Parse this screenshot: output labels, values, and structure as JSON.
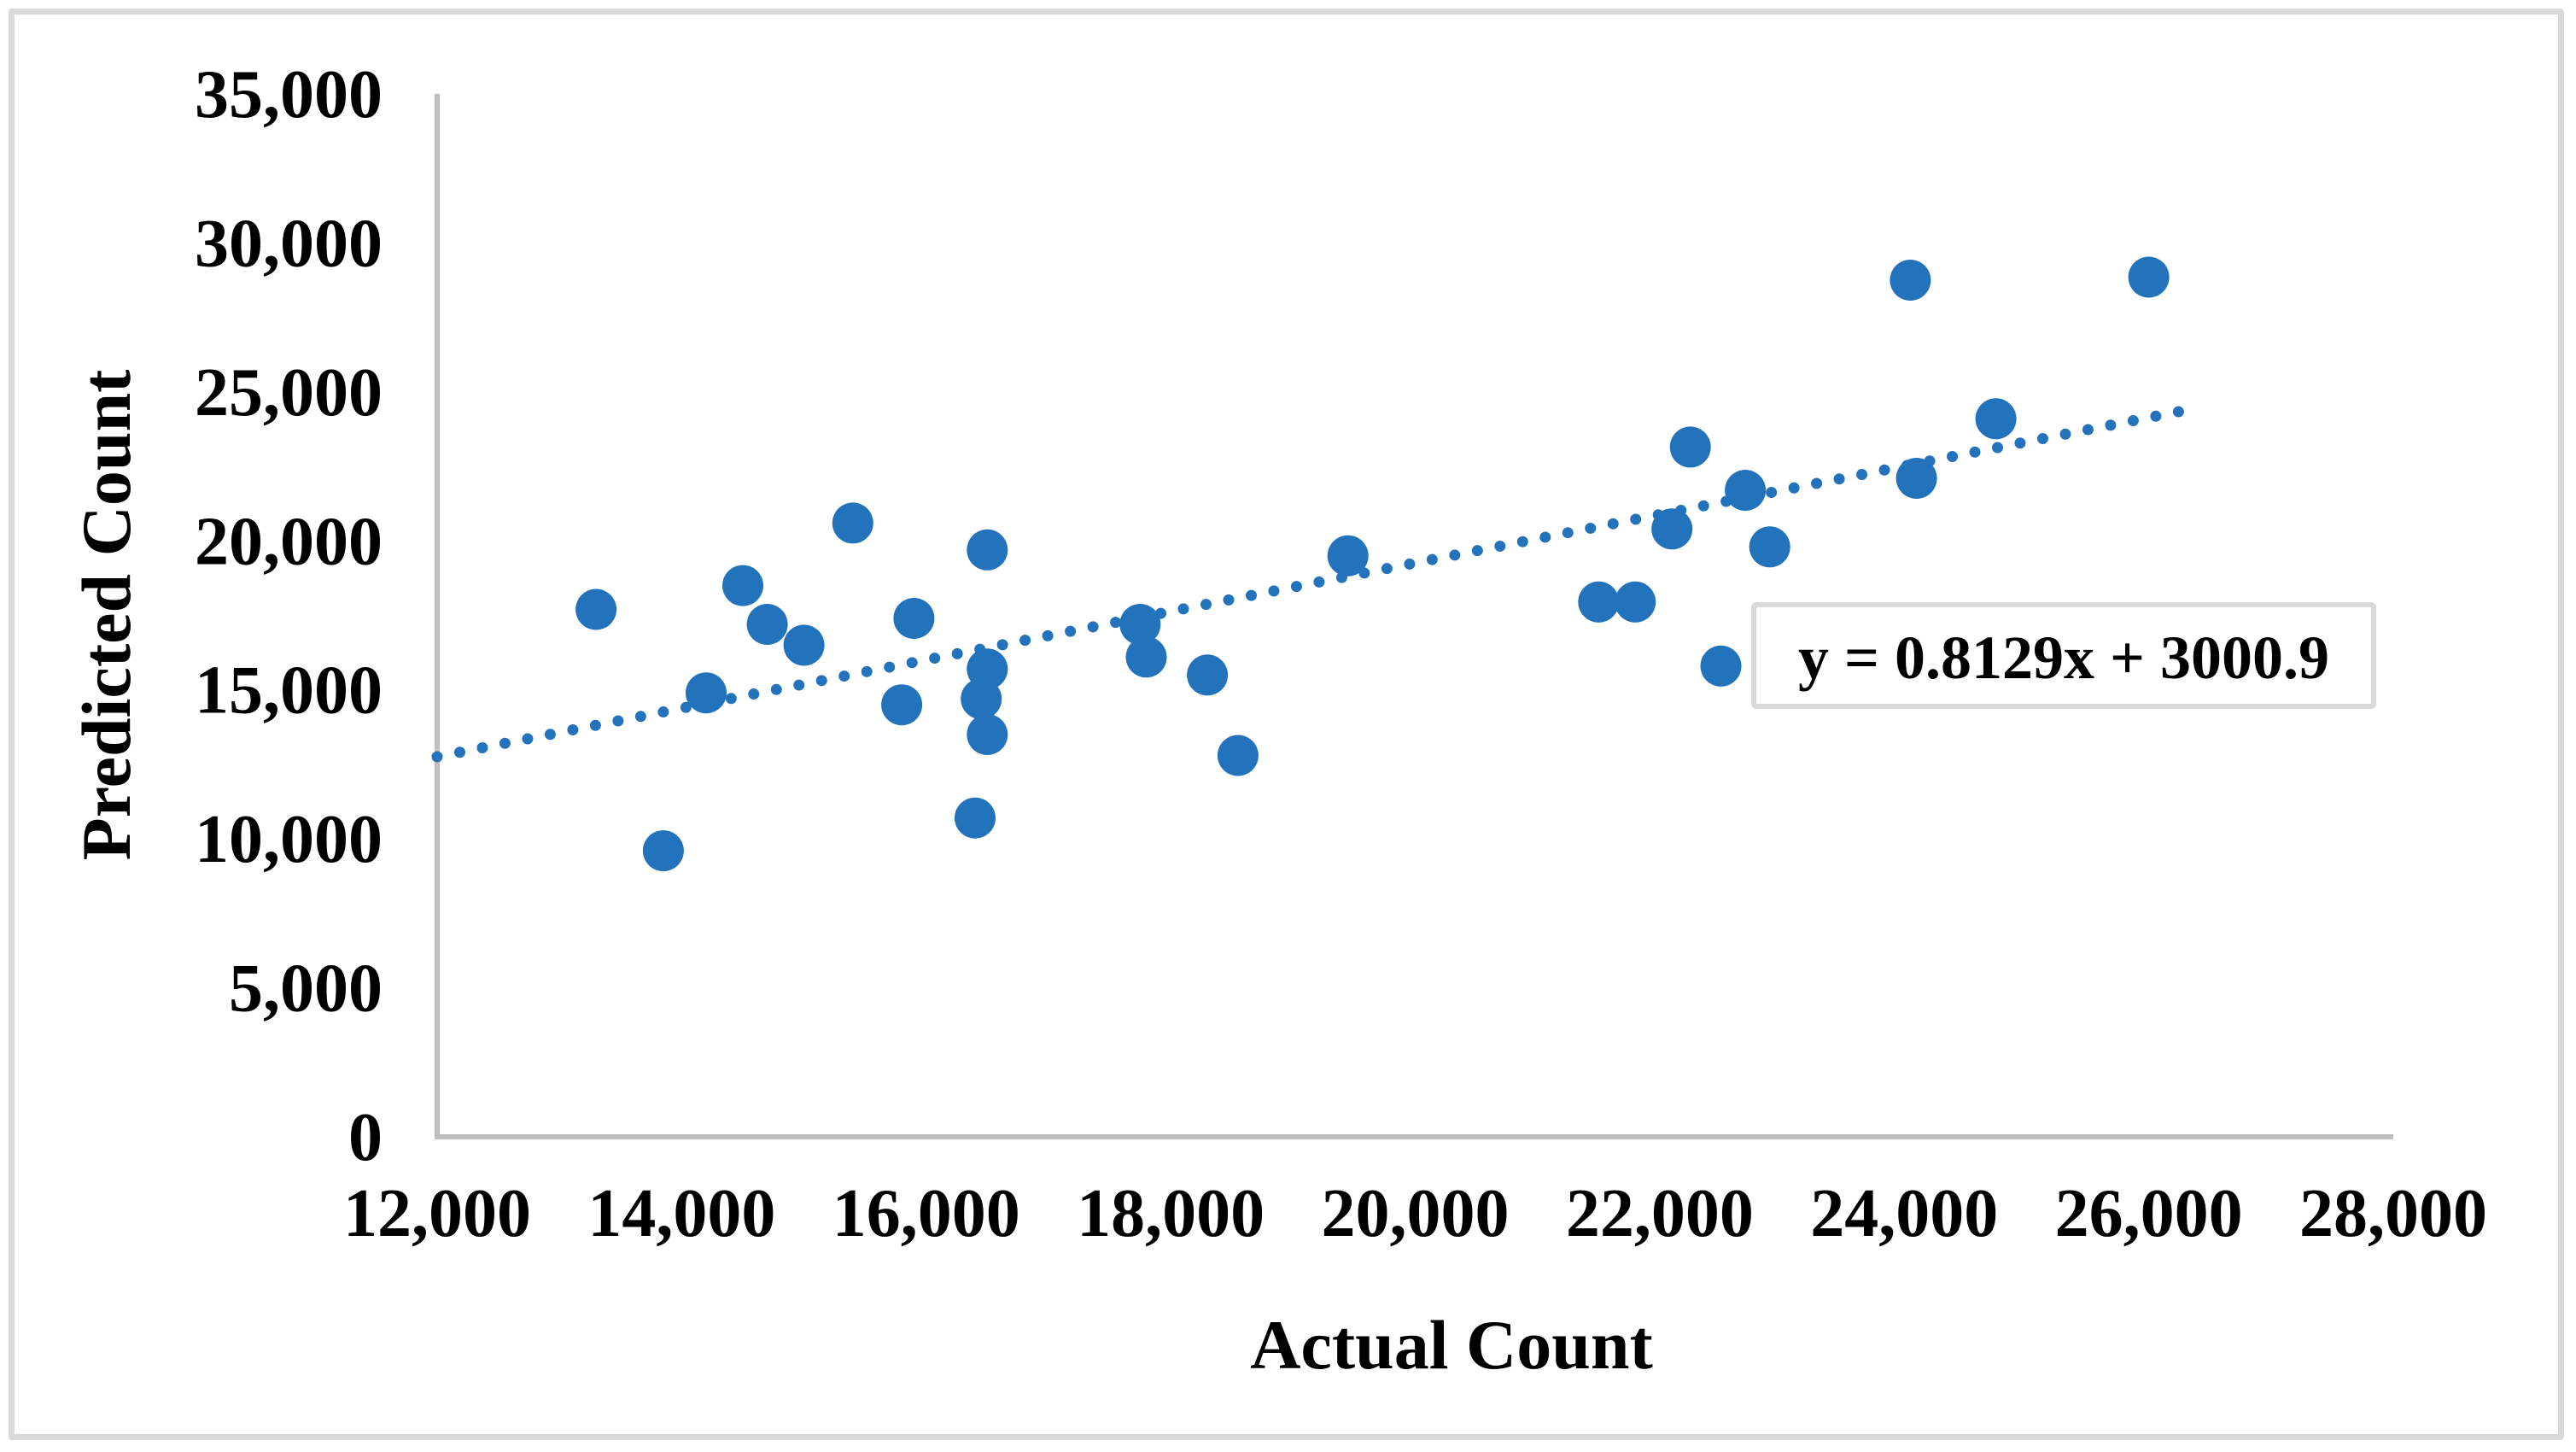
{
  "chart_data": {
    "type": "scatter",
    "title": "",
    "xlabel": "Actual Count",
    "ylabel": "Predicted Count",
    "xlim": [
      12000,
      28000
    ],
    "ylim": [
      0,
      35000
    ],
    "x_tick_step": 2000,
    "y_tick_step": 5000,
    "x_tick_labels": [
      "12,000",
      "14,000",
      "16,000",
      "18,000",
      "20,000",
      "22,000",
      "24,000",
      "26,000",
      "28,000"
    ],
    "y_tick_labels": [
      "0",
      "5,000",
      "10,000",
      "15,000",
      "20,000",
      "25,000",
      "30,000",
      "35,000"
    ],
    "grid": false,
    "legend_position": "none",
    "marker_color": "#2272bc",
    "axis_color": "#bfbfbf",
    "figure_border_color": "#d9d9d9",
    "points": [
      [
        13300,
        17700
      ],
      [
        13850,
        9600
      ],
      [
        14200,
        14900
      ],
      [
        14500,
        18500
      ],
      [
        14700,
        17200
      ],
      [
        15000,
        16500
      ],
      [
        15400,
        20600
      ],
      [
        15800,
        14500
      ],
      [
        15900,
        17400
      ],
      [
        16400,
        10700
      ],
      [
        16450,
        14700
      ],
      [
        16500,
        19700
      ],
      [
        16500,
        15700
      ],
      [
        16500,
        13500
      ],
      [
        17750,
        17200
      ],
      [
        17800,
        16100
      ],
      [
        18300,
        15500
      ],
      [
        18550,
        12800
      ],
      [
        19450,
        19500
      ],
      [
        21500,
        17950
      ],
      [
        21800,
        17950
      ],
      [
        22100,
        20400
      ],
      [
        22250,
        23150
      ],
      [
        22500,
        15800
      ],
      [
        22700,
        21700
      ],
      [
        22900,
        19800
      ],
      [
        24050,
        28750
      ],
      [
        24100,
        22100
      ],
      [
        24750,
        24100
      ],
      [
        26000,
        28850
      ]
    ],
    "trendline": {
      "type": "linear",
      "slope": 0.8129,
      "intercept": 3000.9,
      "x_start": 12000,
      "x_end": 26400,
      "style": "dotted",
      "color": "#2272bc",
      "equation_label": "y = 0.8129x + 3000.9"
    }
  }
}
